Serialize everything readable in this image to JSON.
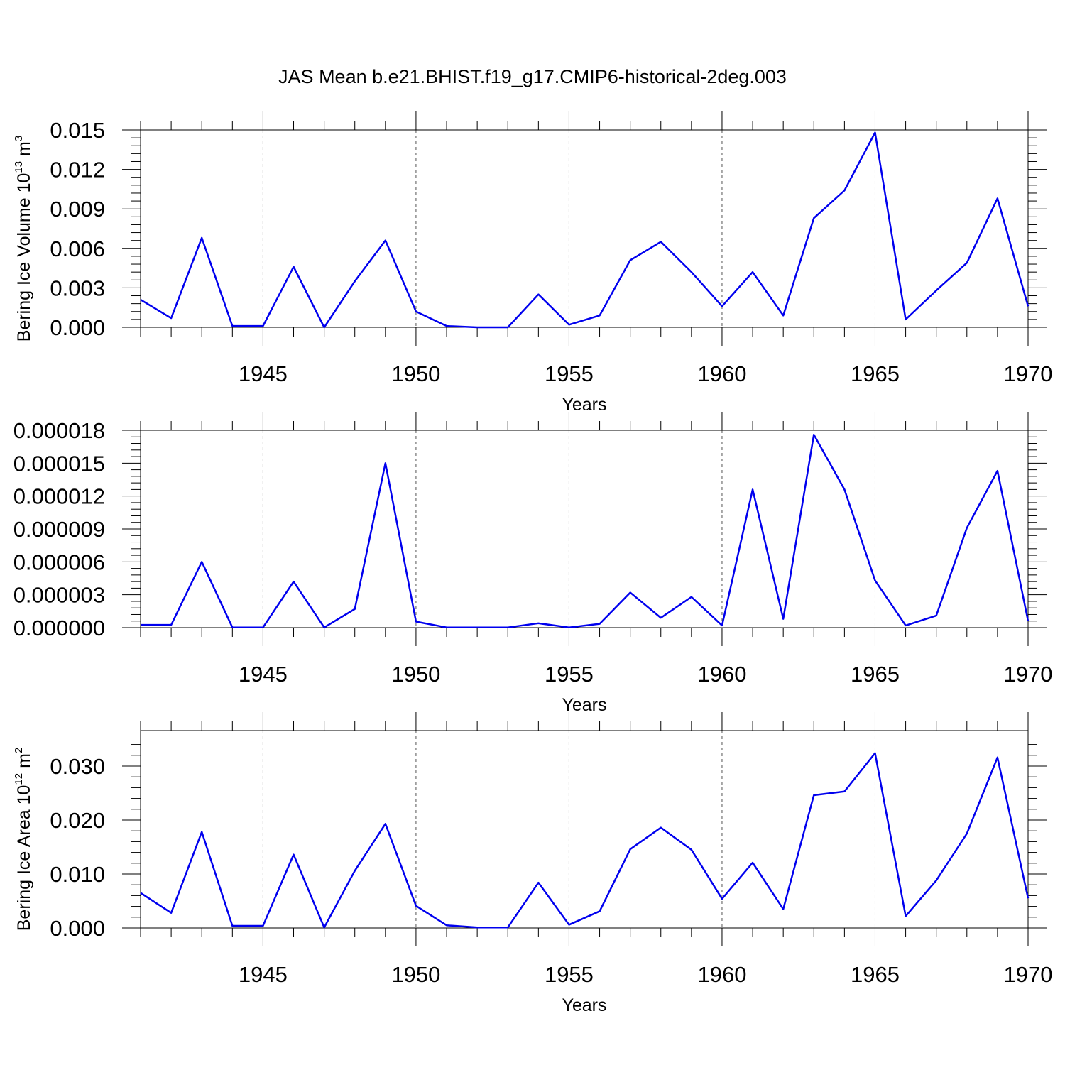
{
  "title": "JAS Mean b.e21.BHIST.f19_g17.CMIP6-historical-2deg.003",
  "chart_data": [
    {
      "type": "line",
      "title": "",
      "xlabel": "Years",
      "ylabel": "Bering Ice Volume 10",
      "ylabel_exp": "13",
      "ylabel_unit": " m",
      "ylabel_unit_exp": "3",
      "xlim": [
        1941,
        1970
      ],
      "ylim": [
        0,
        0.015
      ],
      "grid": "x-dashed",
      "xticks": [
        "1945",
        "1950",
        "1955",
        "1960",
        "1965",
        "1970"
      ],
      "yticks": [
        "0.000",
        "0.003",
        "0.006",
        "0.009",
        "0.012",
        "0.015"
      ],
      "yticks_values": [
        0,
        0.003,
        0.006,
        0.009,
        0.012,
        0.015
      ],
      "x": [
        1941,
        1942,
        1943,
        1944,
        1945,
        1946,
        1947,
        1948,
        1949,
        1950,
        1951,
        1952,
        1953,
        1954,
        1955,
        1956,
        1957,
        1958,
        1959,
        1960,
        1961,
        1962,
        1963,
        1964,
        1965,
        1966,
        1967,
        1968,
        1969,
        1970
      ],
      "series": [
        {
          "values": [
            0.0021,
            0.0007,
            0.0068,
            0.0001,
            0.0001,
            0.0046,
            0.0,
            0.0035,
            0.0066,
            0.0012,
            0.0001,
            0.0,
            0.0,
            0.0025,
            0.0002,
            0.0009,
            0.0051,
            0.0065,
            0.0042,
            0.0016,
            0.0042,
            0.0009,
            0.0083,
            0.0104,
            0.0148,
            0.0006,
            0.0028,
            0.0049,
            0.0098,
            0.0016
          ],
          "color": "#0000ee"
        }
      ]
    },
    {
      "type": "line",
      "title": "",
      "xlabel": "Years",
      "ylabel": "",
      "ylabel_exp": "",
      "ylabel_unit": "",
      "ylabel_unit_exp": "",
      "xlim": [
        1941,
        1970
      ],
      "ylim": [
        0,
        1.8e-05
      ],
      "grid": "x-dashed",
      "xticks": [
        "1945",
        "1950",
        "1955",
        "1960",
        "1965",
        "1970"
      ],
      "yticks": [
        "0.000000",
        "0.000003",
        "0.000006",
        "0.000009",
        "0.000012",
        "0.000015",
        "0.000018"
      ],
      "yticks_values": [
        0,
        3e-06,
        6e-06,
        9e-06,
        1.2e-05,
        1.5e-05,
        1.8e-05
      ],
      "x": [
        1941,
        1942,
        1943,
        1944,
        1945,
        1946,
        1947,
        1948,
        1949,
        1950,
        1951,
        1952,
        1953,
        1954,
        1955,
        1956,
        1957,
        1958,
        1959,
        1960,
        1961,
        1962,
        1963,
        1964,
        1965,
        1966,
        1967,
        1968,
        1969,
        1970
      ],
      "series": [
        {
          "values": [
            2.5e-07,
            2.5e-07,
            6e-06,
            2e-08,
            2e-08,
            4.2e-06,
            2e-08,
            1.7e-06,
            1.5e-05,
            5.5e-07,
            2e-08,
            2e-08,
            2e-08,
            4e-07,
            2e-08,
            3.5e-07,
            3.2e-06,
            9e-07,
            2.8e-06,
            2e-07,
            1.26e-05,
            8e-07,
            1.76e-05,
            1.26e-05,
            4.3e-06,
            2e-07,
            1.1e-06,
            9.1e-06,
            1.43e-05,
            6e-07
          ],
          "color": "#0000ee"
        }
      ]
    },
    {
      "type": "line",
      "title": "",
      "xlabel": "Years",
      "ylabel": "Bering Ice Area 10",
      "ylabel_exp": "12",
      "ylabel_unit": " m",
      "ylabel_unit_exp": "2",
      "xlim": [
        1941,
        1970
      ],
      "ylim": [
        0,
        0.035
      ],
      "grid": "x-dashed",
      "xticks": [
        "1945",
        "1950",
        "1955",
        "1960",
        "1965",
        "1970"
      ],
      "yticks": [
        "0.000",
        "0.010",
        "0.020",
        "0.030"
      ],
      "yticks_values": [
        0,
        0.01,
        0.02,
        0.03
      ],
      "x": [
        1941,
        1942,
        1943,
        1944,
        1945,
        1946,
        1947,
        1948,
        1949,
        1950,
        1951,
        1952,
        1953,
        1954,
        1955,
        1956,
        1957,
        1958,
        1959,
        1960,
        1961,
        1962,
        1963,
        1964,
        1965,
        1966,
        1967,
        1968,
        1969,
        1970
      ],
      "series": [
        {
          "values": [
            0.0065,
            0.0028,
            0.0178,
            0.0004,
            0.0004,
            0.0136,
            0.0001,
            0.0106,
            0.0193,
            0.0041,
            0.0005,
            0.0001,
            0.0001,
            0.0084,
            0.0006,
            0.0031,
            0.0146,
            0.0186,
            0.0145,
            0.0054,
            0.0121,
            0.0035,
            0.0246,
            0.0253,
            0.0324,
            0.0022,
            0.0088,
            0.0175,
            0.0316,
            0.0055
          ],
          "color": "#0000ee"
        }
      ]
    }
  ]
}
